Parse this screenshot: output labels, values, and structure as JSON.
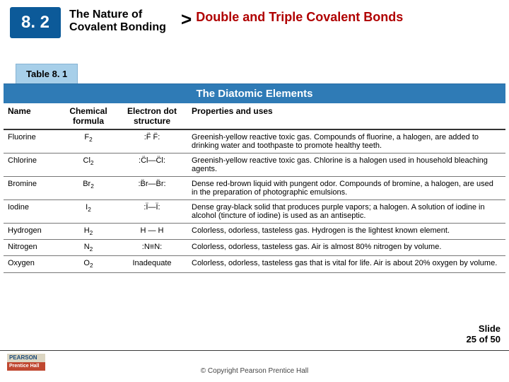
{
  "header": {
    "section_number": "8. 2",
    "chapter_title": "The Nature of Covalent Bonding",
    "separator": ">",
    "topic_title": "Double and Triple Covalent Bonds"
  },
  "table": {
    "tab_label": "Table 8. 1",
    "title": "The Diatomic Elements",
    "columns": [
      "Name",
      "Chemical formula",
      "Electron dot structure",
      "Properties and uses"
    ],
    "rows": [
      {
        "name": "Fluorine",
        "formula": "F",
        "sub": "2",
        "dot": ":F̈   F̈:",
        "props": "Greenish-yellow reactive toxic gas. Compounds of fluorine, a halogen, are added to drinking water and toothpaste to promote healthy teeth."
      },
      {
        "name": "Chlorine",
        "formula": "Cl",
        "sub": "2",
        "dot": ":C̈l—C̈l:",
        "props": "Greenish-yellow reactive toxic gas. Chlorine is a halogen used in household bleaching agents."
      },
      {
        "name": "Bromine",
        "formula": "Br",
        "sub": "2",
        "dot": ":B̈r—B̈r:",
        "props": "Dense red-brown liquid with pungent odor. Compounds of bromine, a halogen, are used in the preparation of photographic emulsions."
      },
      {
        "name": "Iodine",
        "formula": "I",
        "sub": "2",
        "dot": ":Ï—Ï:",
        "props": "Dense gray-black solid that produces purple vapors; a halogen. A solution of iodine in alcohol (tincture of iodine) is used as an antiseptic."
      },
      {
        "name": "Hydrogen",
        "formula": "H",
        "sub": "2",
        "dot": "H — H",
        "props": "Colorless, odorless, tasteless gas. Hydrogen is the lightest known element."
      },
      {
        "name": "Nitrogen",
        "formula": "N",
        "sub": "2",
        "dot": ":N≡N:",
        "props": "Colorless, odorless, tasteless gas. Air is almost 80% nitrogen by volume."
      },
      {
        "name": "Oxygen",
        "formula": "O",
        "sub": "2",
        "dot": "Inadequate",
        "props": "Colorless, odorless, tasteless gas that is vital for life. Air is about 20% oxygen by volume."
      }
    ]
  },
  "slide": {
    "label": "Slide",
    "current": "25",
    "of_word": "of",
    "total": "50"
  },
  "footer": {
    "copyright": "© Copyright Pearson Prentice Hall",
    "logo_top": "PEARSON",
    "logo_bottom": "Prentice Hall"
  }
}
